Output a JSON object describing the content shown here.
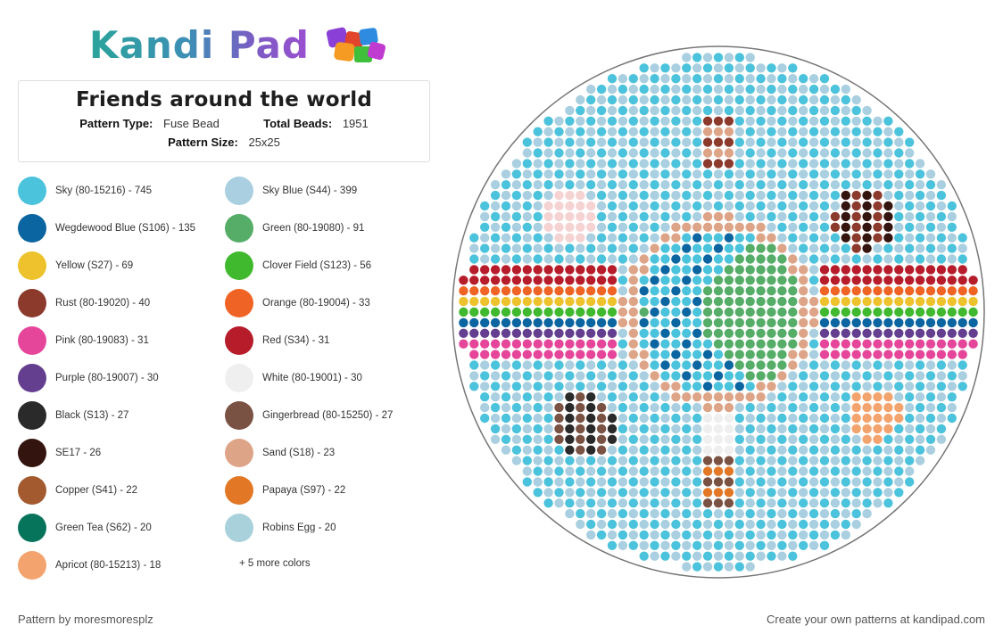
{
  "brand": {
    "name": "Kandi Pad",
    "cube_colors": [
      "#8a3fd6",
      "#e2452b",
      "#2e8be0",
      "#f59a23",
      "#3fbf3a",
      "#c03bd0"
    ]
  },
  "pattern": {
    "title": "Friends around the world",
    "type_label": "Pattern Type:",
    "type_value": "Fuse Bead",
    "total_label": "Total Beads:",
    "total_value": "1951",
    "size_label": "Pattern Size:",
    "size_value": "25x25"
  },
  "legend": [
    {
      "label": "Sky (80-15216) - 745",
      "color": "#4bc3dc"
    },
    {
      "label": "Sky Blue (S44) - 399",
      "color": "#a9cfe0"
    },
    {
      "label": "Wegdewood Blue (S106) - 135",
      "color": "#0b65a0"
    },
    {
      "label": "Green (80-19080) - 91",
      "color": "#55ad68"
    },
    {
      "label": "Yellow (S27) - 69",
      "color": "#eec22c"
    },
    {
      "label": "Clover Field (S123) - 56",
      "color": "#40b92e"
    },
    {
      "label": "Rust (80-19020) - 40",
      "color": "#8b3a2c"
    },
    {
      "label": "Orange (80-19004) - 33",
      "color": "#ef6424"
    },
    {
      "label": "Pink (80-19083) - 31",
      "color": "#e6469a"
    },
    {
      "label": "Red (S34) - 31",
      "color": "#b71c2a"
    },
    {
      "label": "Purple (80-19007) - 30",
      "color": "#643f8f"
    },
    {
      "label": "White (80-19001) - 30",
      "color": "#efefef"
    },
    {
      "label": "Black (S13) - 27",
      "color": "#2a2a2a"
    },
    {
      "label": "Gingerbread (80-15250) - 27",
      "color": "#7a5244"
    },
    {
      "label": "SE17 - 26",
      "color": "#34140f"
    },
    {
      "label": "Sand (S18) - 23",
      "color": "#dea487"
    },
    {
      "label": "Copper (S41) - 22",
      "color": "#a35a2e"
    },
    {
      "label": "Papaya (S97) - 22",
      "color": "#e27826"
    },
    {
      "label": "Green Tea (S62) - 20",
      "color": "#05745a"
    },
    {
      "label": "Robins Egg - 20",
      "color": "#a8d1dc"
    },
    {
      "label": "Apricot (80-15213) - 18",
      "color": "#f3a46e"
    }
  ],
  "more_colors": "+ 5 more colors",
  "footer": {
    "author": "Pattern by moresmoresplz",
    "cta": "Create your own patterns at kandipad.com"
  }
}
